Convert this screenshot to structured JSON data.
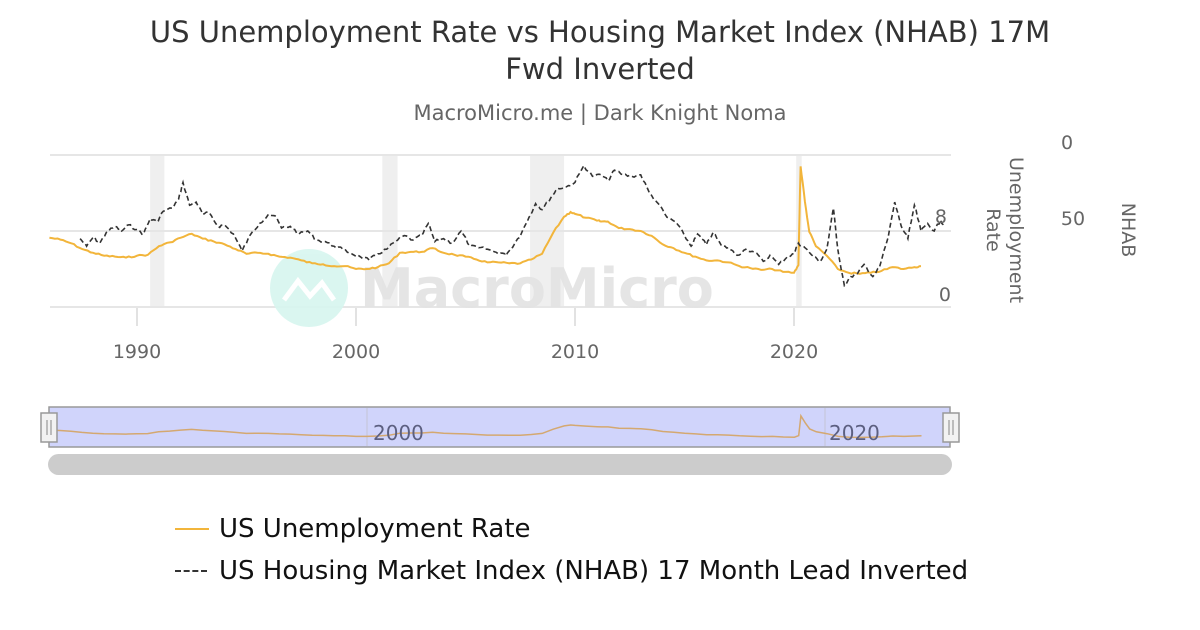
{
  "header": {
    "title_line1": "US Unemployment Rate vs Housing Market Index (NHAB) 17M",
    "title_line2": "Fwd Inverted",
    "subtitle": "MacroMicro.me | Dark Knight Noma"
  },
  "watermark": "MacroMicro",
  "axes": {
    "left_axis_title": "Unemployment Rate",
    "right_axis_title": "NHAB",
    "unemployment_ticks": [
      "0",
      "8"
    ],
    "nhab_ticks": [
      "0",
      "50"
    ],
    "x_ticks": [
      "1990",
      "2000",
      "2010",
      "2020"
    ],
    "navigator_ticks": [
      "2000",
      "2020"
    ]
  },
  "legend": {
    "items": [
      {
        "label": "US Unemployment Rate",
        "color": "#f2b53b",
        "style": "solid"
      },
      {
        "label": "US Housing Market Index (NHAB) 17 Month Lead Inverted",
        "color": "#333333",
        "style": "dashed"
      }
    ]
  },
  "colors": {
    "unemployment": "#f2b53b",
    "nhab": "#333333",
    "recession_band": "#efefef",
    "grid": "#e6e6e6",
    "navigator_mask": "#d0d4fb",
    "scrollbar": "#cccccc"
  },
  "chart_data": {
    "type": "line",
    "title": "US Unemployment Rate vs Housing Market Index (NHAB) 17M Fwd Inverted",
    "subtitle": "MacroMicro.me | Dark Knight Noma",
    "xlabel": "",
    "xlim": [
      1986.0,
      2027.1
    ],
    "x_ticks": [
      1990,
      2000,
      2010,
      2020
    ],
    "grid": true,
    "legend_position": "bottom",
    "recessions": [
      [
        1990.6,
        1991.25
      ],
      [
        2001.2,
        2001.9
      ],
      [
        2007.95,
        2009.5
      ],
      [
        2020.1,
        2020.35
      ]
    ],
    "y_axes": [
      {
        "name": "Unemployment Rate",
        "side": "right",
        "range": [
          0,
          16
        ],
        "ticks": [
          0,
          8
        ],
        "inverted": false
      },
      {
        "name": "NHAB",
        "side": "right",
        "range": [
          0,
          100
        ],
        "ticks": [
          0,
          50
        ],
        "inverted": true
      }
    ],
    "series": [
      {
        "name": "US Unemployment Rate",
        "axis": "Unemployment Rate",
        "style": "solid",
        "points": [
          [
            1986.0,
            7.3
          ],
          [
            1986.5,
            7.1
          ],
          [
            1987.0,
            6.7
          ],
          [
            1987.5,
            6.1
          ],
          [
            1988.0,
            5.7
          ],
          [
            1988.5,
            5.4
          ],
          [
            1989.0,
            5.3
          ],
          [
            1989.5,
            5.2
          ],
          [
            1990.0,
            5.4
          ],
          [
            1990.5,
            5.5
          ],
          [
            1991.0,
            6.4
          ],
          [
            1991.5,
            6.8
          ],
          [
            1992.0,
            7.3
          ],
          [
            1992.5,
            7.7
          ],
          [
            1993.0,
            7.2
          ],
          [
            1993.5,
            6.9
          ],
          [
            1994.0,
            6.6
          ],
          [
            1994.5,
            6.1
          ],
          [
            1995.0,
            5.6
          ],
          [
            1995.5,
            5.7
          ],
          [
            1996.0,
            5.6
          ],
          [
            1996.5,
            5.3
          ],
          [
            1997.0,
            5.2
          ],
          [
            1997.5,
            4.9
          ],
          [
            1998.0,
            4.6
          ],
          [
            1998.5,
            4.5
          ],
          [
            1999.0,
            4.3
          ],
          [
            1999.5,
            4.3
          ],
          [
            2000.0,
            4.0
          ],
          [
            2000.5,
            4.0
          ],
          [
            2001.0,
            4.2
          ],
          [
            2001.5,
            4.6
          ],
          [
            2002.0,
            5.7
          ],
          [
            2002.5,
            5.8
          ],
          [
            2003.0,
            5.8
          ],
          [
            2003.5,
            6.2
          ],
          [
            2004.0,
            5.7
          ],
          [
            2004.5,
            5.5
          ],
          [
            2005.0,
            5.3
          ],
          [
            2005.5,
            5.0
          ],
          [
            2006.0,
            4.7
          ],
          [
            2006.5,
            4.7
          ],
          [
            2007.0,
            4.6
          ],
          [
            2007.5,
            4.6
          ],
          [
            2008.0,
            5.0
          ],
          [
            2008.5,
            5.6
          ],
          [
            2009.0,
            7.8
          ],
          [
            2009.5,
            9.5
          ],
          [
            2009.8,
            10.0
          ],
          [
            2010.0,
            9.8
          ],
          [
            2010.5,
            9.4
          ],
          [
            2011.0,
            9.1
          ],
          [
            2011.2,
            9.0
          ],
          [
            2011.5,
            9.0
          ],
          [
            2012.0,
            8.3
          ],
          [
            2012.5,
            8.2
          ],
          [
            2013.0,
            8.0
          ],
          [
            2013.5,
            7.5
          ],
          [
            2014.0,
            6.6
          ],
          [
            2014.5,
            6.2
          ],
          [
            2015.0,
            5.7
          ],
          [
            2015.5,
            5.3
          ],
          [
            2016.0,
            4.9
          ],
          [
            2016.5,
            4.9
          ],
          [
            2017.0,
            4.7
          ],
          [
            2017.5,
            4.3
          ],
          [
            2018.0,
            4.1
          ],
          [
            2018.5,
            3.9
          ],
          [
            2019.0,
            4.0
          ],
          [
            2019.5,
            3.7
          ],
          [
            2020.0,
            3.6
          ],
          [
            2020.2,
            4.4
          ],
          [
            2020.3,
            14.8
          ],
          [
            2020.5,
            11.1
          ],
          [
            2020.7,
            7.9
          ],
          [
            2021.0,
            6.4
          ],
          [
            2021.5,
            5.4
          ],
          [
            2022.0,
            4.0
          ],
          [
            2022.5,
            3.6
          ],
          [
            2023.0,
            3.5
          ],
          [
            2023.5,
            3.6
          ],
          [
            2024.0,
            3.8
          ],
          [
            2024.5,
            4.2
          ],
          [
            2025.0,
            4.0
          ],
          [
            2025.5,
            4.2
          ],
          [
            2025.8,
            4.3
          ]
        ]
      },
      {
        "name": "US Housing Market Index (NHAB) 17 Month Lead Inverted",
        "axis": "NHAB",
        "style": "dashed",
        "points": [
          [
            1987.4,
            55
          ],
          [
            1987.7,
            60
          ],
          [
            1988.0,
            54
          ],
          [
            1988.3,
            58
          ],
          [
            1988.6,
            51
          ],
          [
            1989.0,
            47
          ],
          [
            1989.3,
            50
          ],
          [
            1989.6,
            46
          ],
          [
            1990.0,
            49
          ],
          [
            1990.3,
            52
          ],
          [
            1990.6,
            42
          ],
          [
            1990.9,
            44
          ],
          [
            1991.2,
            37
          ],
          [
            1991.6,
            35
          ],
          [
            1991.9,
            29
          ],
          [
            1992.1,
            18
          ],
          [
            1992.4,
            33
          ],
          [
            1992.7,
            31
          ],
          [
            1993.0,
            39
          ],
          [
            1993.3,
            38
          ],
          [
            1993.7,
            47
          ],
          [
            1994.0,
            46
          ],
          [
            1994.4,
            52
          ],
          [
            1994.8,
            63
          ],
          [
            1995.2,
            52
          ],
          [
            1995.6,
            45
          ],
          [
            1996.0,
            39
          ],
          [
            1996.3,
            40
          ],
          [
            1996.6,
            48
          ],
          [
            1997.0,
            47
          ],
          [
            1997.4,
            52
          ],
          [
            1997.8,
            50
          ],
          [
            1998.2,
            56
          ],
          [
            1998.6,
            57
          ],
          [
            1999.0,
            60
          ],
          [
            1999.4,
            62
          ],
          [
            1999.8,
            65
          ],
          [
            2000.2,
            67
          ],
          [
            2000.6,
            69
          ],
          [
            2001.0,
            65
          ],
          [
            2001.4,
            62
          ],
          [
            2001.8,
            57
          ],
          [
            2002.2,
            53
          ],
          [
            2002.6,
            56
          ],
          [
            2003.0,
            53
          ],
          [
            2003.3,
            45
          ],
          [
            2003.6,
            57
          ],
          [
            2004.0,
            55
          ],
          [
            2004.4,
            58
          ],
          [
            2004.8,
            50
          ],
          [
            2005.2,
            60
          ],
          [
            2005.6,
            61
          ],
          [
            2006.0,
            62
          ],
          [
            2006.4,
            64
          ],
          [
            2006.8,
            65
          ],
          [
            2007.0,
            63
          ],
          [
            2007.3,
            57
          ],
          [
            2007.6,
            50
          ],
          [
            2007.9,
            41
          ],
          [
            2008.2,
            32
          ],
          [
            2008.5,
            36
          ],
          [
            2008.9,
            28
          ],
          [
            2009.2,
            22
          ],
          [
            2009.6,
            21
          ],
          [
            2010.0,
            18
          ],
          [
            2010.4,
            7
          ],
          [
            2010.8,
            14
          ],
          [
            2011.2,
            13
          ],
          [
            2011.5,
            17
          ],
          [
            2011.8,
            10
          ],
          [
            2012.2,
            13
          ],
          [
            2012.6,
            14
          ],
          [
            2013.0,
            13
          ],
          [
            2013.4,
            25
          ],
          [
            2013.8,
            32
          ],
          [
            2014.2,
            41
          ],
          [
            2014.6,
            44
          ],
          [
            2015.0,
            53
          ],
          [
            2015.3,
            60
          ],
          [
            2015.6,
            52
          ],
          [
            2016.0,
            59
          ],
          [
            2016.3,
            51
          ],
          [
            2016.7,
            60
          ],
          [
            2017.0,
            61
          ],
          [
            2017.4,
            66
          ],
          [
            2017.8,
            62
          ],
          [
            2018.2,
            64
          ],
          [
            2018.6,
            70
          ],
          [
            2018.9,
            66
          ],
          [
            2019.3,
            72
          ],
          [
            2019.7,
            67
          ],
          [
            2020.0,
            65
          ],
          [
            2020.2,
            58
          ],
          [
            2020.5,
            61
          ],
          [
            2020.9,
            67
          ],
          [
            2021.2,
            70
          ],
          [
            2021.5,
            62
          ],
          [
            2021.8,
            35
          ],
          [
            2022.0,
            62
          ],
          [
            2022.3,
            86
          ],
          [
            2022.6,
            80
          ],
          [
            2022.9,
            78
          ],
          [
            2023.2,
            72
          ],
          [
            2023.6,
            80
          ],
          [
            2023.9,
            74
          ],
          [
            2024.3,
            54
          ],
          [
            2024.6,
            31
          ],
          [
            2024.9,
            47
          ],
          [
            2025.2,
            55
          ],
          [
            2025.5,
            33
          ],
          [
            2025.8,
            50
          ],
          [
            2026.1,
            45
          ],
          [
            2026.4,
            50
          ],
          [
            2026.7,
            43
          ],
          [
            2026.9,
            47
          ]
        ]
      }
    ]
  }
}
